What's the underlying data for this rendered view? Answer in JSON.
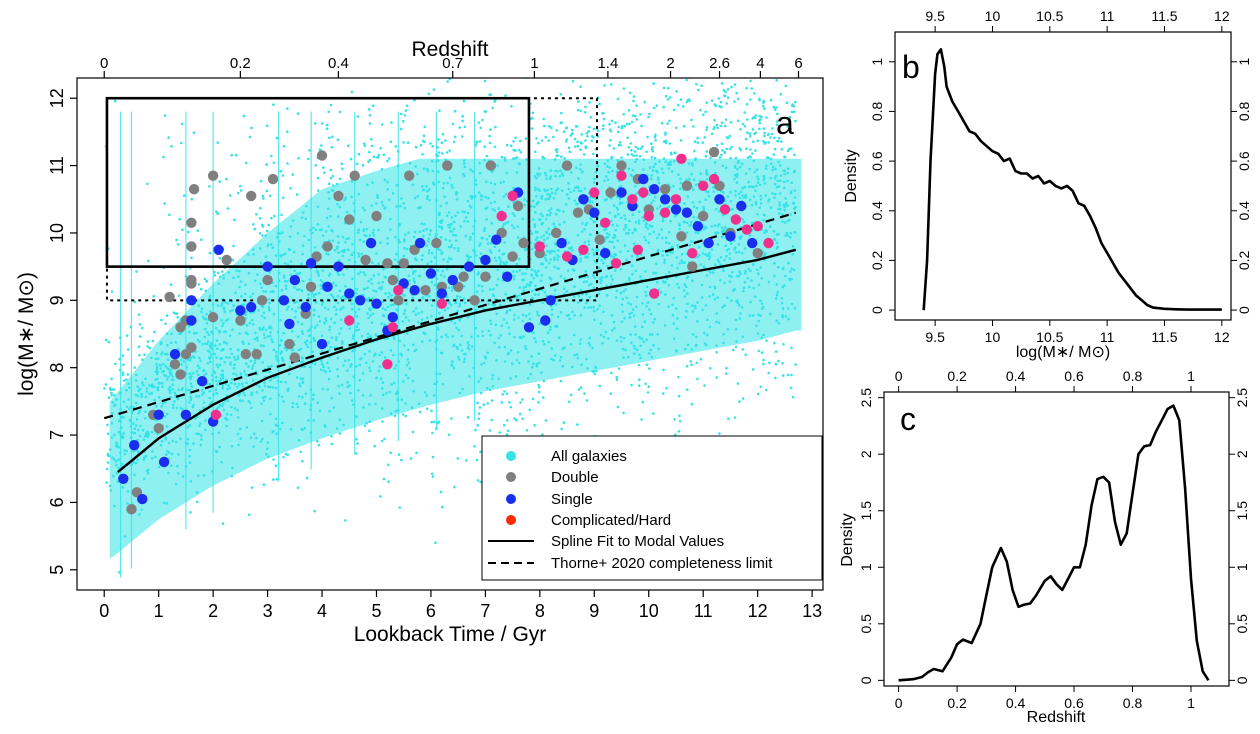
{
  "figure": "Galaxy stellar mass versus lookback time with density panels",
  "chart_data": [
    {
      "id": "a",
      "type": "scatter",
      "panel_label": "a",
      "xlabel": "Lookback Time / Gyr",
      "ylabel": "log(M∗/ M⊙)",
      "top_axis_label": "Redshift",
      "xlim": [
        -0.5,
        13.2
      ],
      "ylim": [
        4.7,
        12.3
      ],
      "xticks": [
        0,
        1,
        2,
        3,
        4,
        5,
        6,
        7,
        8,
        9,
        10,
        11,
        12,
        13
      ],
      "yticks": [
        5,
        6,
        7,
        8,
        9,
        10,
        11,
        12
      ],
      "top_ticks": [
        {
          "label": "0",
          "t": 0.0
        },
        {
          "label": "0.2",
          "t": 2.5
        },
        {
          "label": "0.4",
          "t": 4.3
        },
        {
          "label": "0.7",
          "t": 6.4
        },
        {
          "label": "1",
          "t": 7.9
        },
        {
          "label": "1.4",
          "t": 9.25
        },
        {
          "label": "2",
          "t": 10.4
        },
        {
          "label": "2.6",
          "t": 11.3
        },
        {
          "label": "4",
          "t": 12.05
        },
        {
          "label": "6",
          "t": 12.75
        }
      ],
      "colors": {
        "all": "#33e3e6",
        "double": "#808080",
        "single": "#1b2ef0",
        "complicated": "#f0308c",
        "legend_complicated": "#ff2a00"
      },
      "legend": [
        {
          "label": "All galaxies",
          "kind": "dot",
          "color": "#33e3e6"
        },
        {
          "label": "Double",
          "kind": "dot",
          "color": "#808080"
        },
        {
          "label": "Single",
          "kind": "dot",
          "color": "#1b2ef0"
        },
        {
          "label": "Complicated/Hard",
          "kind": "dot",
          "color": "#ff2a00"
        },
        {
          "label": "Spline Fit to Modal Values",
          "kind": "solid"
        },
        {
          "label": "Thorne+ 2020 completeness limit",
          "kind": "dashed"
        }
      ],
      "legend_position": "bottom-right",
      "boxes": [
        {
          "style": "solid",
          "x": [
            0.05,
            7.8
          ],
          "y": [
            9.5,
            12.0
          ]
        },
        {
          "style": "dotted",
          "x": [
            0.05,
            9.05
          ],
          "y": [
            9.0,
            12.0
          ]
        }
      ],
      "spline_fit": {
        "x": [
          0.25,
          1,
          2,
          3,
          4,
          5,
          6,
          7,
          8,
          9,
          10,
          11,
          12,
          12.7
        ],
        "y": [
          6.45,
          6.95,
          7.45,
          7.85,
          8.15,
          8.42,
          8.65,
          8.85,
          9.0,
          9.15,
          9.3,
          9.45,
          9.6,
          9.75
        ]
      },
      "completeness_limit": {
        "x": [
          0.0,
          12.7
        ],
        "y": [
          7.25,
          10.3
        ]
      },
      "double": [
        [
          0.5,
          5.9
        ],
        [
          0.6,
          6.15
        ],
        [
          1.0,
          7.1
        ],
        [
          0.9,
          7.3
        ],
        [
          1.3,
          8.05
        ],
        [
          1.4,
          7.9
        ],
        [
          1.5,
          8.2
        ],
        [
          1.6,
          8.3
        ],
        [
          1.4,
          8.6
        ],
        [
          1.5,
          8.7
        ],
        [
          1.2,
          9.05
        ],
        [
          1.6,
          9.25
        ],
        [
          1.6,
          9.3
        ],
        [
          1.6,
          9.8
        ],
        [
          1.6,
          10.15
        ],
        [
          1.65,
          10.65
        ],
        [
          2.0,
          10.85
        ],
        [
          2.25,
          9.6
        ],
        [
          2.0,
          8.75
        ],
        [
          2.5,
          8.7
        ],
        [
          2.6,
          8.2
        ],
        [
          2.8,
          8.2
        ],
        [
          2.9,
          9.0
        ],
        [
          3.0,
          9.3
        ],
        [
          3.1,
          10.8
        ],
        [
          2.7,
          10.55
        ],
        [
          3.4,
          8.35
        ],
        [
          3.5,
          8.15
        ],
        [
          3.7,
          8.8
        ],
        [
          3.8,
          9.2
        ],
        [
          3.9,
          9.65
        ],
        [
          4.0,
          11.15
        ],
        [
          4.1,
          9.8
        ],
        [
          4.3,
          10.55
        ],
        [
          4.5,
          10.2
        ],
        [
          4.6,
          10.85
        ],
        [
          4.8,
          9.6
        ],
        [
          5.0,
          10.25
        ],
        [
          5.2,
          9.55
        ],
        [
          5.3,
          9.3
        ],
        [
          5.4,
          9.0
        ],
        [
          5.5,
          9.55
        ],
        [
          5.6,
          10.85
        ],
        [
          5.7,
          9.75
        ],
        [
          5.9,
          9.15
        ],
        [
          6.1,
          9.85
        ],
        [
          6.2,
          9.2
        ],
        [
          6.3,
          11.0
        ],
        [
          6.5,
          9.2
        ],
        [
          6.6,
          9.35
        ],
        [
          6.8,
          9.0
        ],
        [
          7.0,
          9.35
        ],
        [
          7.1,
          11.0
        ],
        [
          7.3,
          10.0
        ],
        [
          7.5,
          9.65
        ],
        [
          7.6,
          10.4
        ],
        [
          7.7,
          9.85
        ],
        [
          8.0,
          9.7
        ],
        [
          8.3,
          10.0
        ],
        [
          8.5,
          11.0
        ],
        [
          8.7,
          10.3
        ],
        [
          8.9,
          10.35
        ],
        [
          9.1,
          9.9
        ],
        [
          9.3,
          10.6
        ],
        [
          9.5,
          11.0
        ],
        [
          9.8,
          10.8
        ],
        [
          10.0,
          10.35
        ],
        [
          10.3,
          10.65
        ],
        [
          10.6,
          9.95
        ],
        [
          10.7,
          10.7
        ],
        [
          10.8,
          9.5
        ],
        [
          11.0,
          10.25
        ],
        [
          11.2,
          11.2
        ],
        [
          11.3,
          10.7
        ],
        [
          11.5,
          10.0
        ],
        [
          12.0,
          9.7
        ]
      ],
      "single": [
        [
          0.35,
          6.35
        ],
        [
          0.55,
          6.85
        ],
        [
          0.7,
          6.05
        ],
        [
          1.0,
          7.3
        ],
        [
          1.1,
          6.6
        ],
        [
          1.3,
          8.2
        ],
        [
          1.5,
          7.3
        ],
        [
          1.6,
          8.7
        ],
        [
          1.6,
          9.0
        ],
        [
          1.8,
          7.8
        ],
        [
          2.0,
          7.2
        ],
        [
          2.1,
          9.75
        ],
        [
          2.5,
          8.85
        ],
        [
          2.7,
          8.9
        ],
        [
          3.0,
          9.5
        ],
        [
          3.3,
          9.0
        ],
        [
          3.4,
          8.65
        ],
        [
          3.5,
          9.3
        ],
        [
          3.7,
          8.9
        ],
        [
          3.8,
          9.55
        ],
        [
          4.0,
          8.35
        ],
        [
          4.1,
          9.2
        ],
        [
          4.3,
          9.5
        ],
        [
          4.5,
          9.1
        ],
        [
          4.7,
          9.0
        ],
        [
          4.9,
          9.85
        ],
        [
          5.0,
          8.95
        ],
        [
          5.2,
          8.55
        ],
        [
          5.3,
          8.75
        ],
        [
          5.5,
          9.25
        ],
        [
          5.7,
          9.15
        ],
        [
          5.8,
          9.85
        ],
        [
          6.0,
          9.4
        ],
        [
          6.2,
          9.1
        ],
        [
          6.4,
          9.3
        ],
        [
          6.7,
          9.5
        ],
        [
          7.0,
          9.6
        ],
        [
          7.2,
          9.9
        ],
        [
          7.4,
          9.35
        ],
        [
          7.6,
          10.6
        ],
        [
          7.8,
          8.6
        ],
        [
          8.1,
          8.7
        ],
        [
          8.2,
          9.0
        ],
        [
          8.4,
          9.85
        ],
        [
          8.6,
          9.6
        ],
        [
          8.8,
          10.5
        ],
        [
          9.0,
          10.3
        ],
        [
          9.2,
          9.7
        ],
        [
          9.5,
          10.6
        ],
        [
          9.7,
          10.4
        ],
        [
          9.9,
          10.8
        ],
        [
          10.1,
          10.65
        ],
        [
          10.3,
          10.5
        ],
        [
          10.5,
          10.35
        ],
        [
          10.7,
          10.3
        ],
        [
          10.9,
          10.1
        ],
        [
          11.1,
          9.85
        ],
        [
          11.3,
          10.5
        ],
        [
          11.5,
          9.95
        ],
        [
          11.7,
          10.4
        ],
        [
          11.9,
          9.85
        ]
      ],
      "complicated": [
        [
          2.05,
          7.3
        ],
        [
          4.5,
          8.7
        ],
        [
          5.2,
          8.05
        ],
        [
          5.3,
          8.6
        ],
        [
          5.4,
          9.15
        ],
        [
          6.2,
          8.95
        ],
        [
          7.3,
          10.25
        ],
        [
          7.5,
          10.55
        ],
        [
          8.0,
          9.8
        ],
        [
          8.5,
          9.65
        ],
        [
          8.8,
          9.75
        ],
        [
          9.0,
          10.6
        ],
        [
          9.2,
          10.15
        ],
        [
          9.4,
          9.55
        ],
        [
          9.5,
          10.85
        ],
        [
          9.7,
          10.5
        ],
        [
          9.8,
          9.75
        ],
        [
          9.9,
          10.6
        ],
        [
          10.0,
          10.25
        ],
        [
          10.1,
          9.1
        ],
        [
          10.3,
          10.3
        ],
        [
          10.5,
          10.5
        ],
        [
          10.6,
          11.1
        ],
        [
          10.8,
          9.7
        ],
        [
          11.0,
          10.7
        ],
        [
          11.2,
          10.8
        ],
        [
          11.4,
          10.35
        ],
        [
          11.6,
          10.2
        ],
        [
          11.8,
          10.05
        ],
        [
          12.0,
          10.1
        ],
        [
          12.2,
          9.85
        ]
      ]
    },
    {
      "id": "b",
      "type": "line",
      "panel_label": "b",
      "xlabel": "log(M∗/ M⊙)",
      "ylabel": "Density",
      "xlim": [
        9.15,
        12.08
      ],
      "ylim": [
        -0.04,
        1.12
      ],
      "xticks": [
        9.5,
        10,
        10.5,
        11,
        11.5,
        12
      ],
      "xtick_labels": [
        "9.5",
        "10",
        "10.5",
        "11",
        "11.5",
        "12"
      ],
      "yticks": [
        0,
        0.2,
        0.4,
        0.6,
        0.8,
        1
      ],
      "ytick_labels": [
        "0",
        "0.2",
        "0.4",
        "0.6",
        "0.8",
        "1"
      ],
      "x": [
        9.4,
        9.43,
        9.46,
        9.5,
        9.52,
        9.55,
        9.58,
        9.6,
        9.65,
        9.7,
        9.75,
        9.8,
        9.85,
        9.9,
        9.95,
        10.0,
        10.05,
        10.1,
        10.15,
        10.2,
        10.25,
        10.3,
        10.35,
        10.4,
        10.45,
        10.5,
        10.55,
        10.6,
        10.65,
        10.7,
        10.75,
        10.8,
        10.85,
        10.9,
        10.95,
        11.0,
        11.05,
        11.1,
        11.15,
        11.2,
        11.25,
        11.3,
        11.35,
        11.4,
        11.5,
        11.6,
        11.7,
        11.8,
        12.0
      ],
      "y": [
        0.0,
        0.2,
        0.6,
        0.95,
        1.03,
        1.05,
        0.98,
        0.9,
        0.84,
        0.8,
        0.76,
        0.72,
        0.71,
        0.68,
        0.66,
        0.64,
        0.63,
        0.6,
        0.61,
        0.56,
        0.55,
        0.55,
        0.53,
        0.54,
        0.51,
        0.52,
        0.5,
        0.49,
        0.5,
        0.48,
        0.43,
        0.42,
        0.38,
        0.33,
        0.27,
        0.23,
        0.19,
        0.15,
        0.12,
        0.09,
        0.06,
        0.04,
        0.02,
        0.01,
        0.005,
        0.003,
        0.002,
        0.002,
        0.002
      ]
    },
    {
      "id": "c",
      "type": "line",
      "panel_label": "c",
      "xlabel": "Redshift",
      "ylabel": "Density",
      "xlim": [
        -0.05,
        1.13
      ],
      "ylim": [
        -0.05,
        2.55
      ],
      "xticks": [
        0,
        0.2,
        0.4,
        0.6,
        0.8,
        1
      ],
      "xtick_labels": [
        "0",
        "0.2",
        "0.4",
        "0.6",
        "0.8",
        "1"
      ],
      "yticks": [
        0,
        0.5,
        1,
        1.5,
        2,
        2.5
      ],
      "ytick_labels": [
        "0",
        "0.5",
        "1",
        "1.5",
        "2",
        "2.5"
      ],
      "x": [
        0.0,
        0.05,
        0.08,
        0.1,
        0.12,
        0.15,
        0.18,
        0.2,
        0.22,
        0.25,
        0.28,
        0.3,
        0.32,
        0.35,
        0.37,
        0.39,
        0.41,
        0.43,
        0.45,
        0.47,
        0.5,
        0.52,
        0.54,
        0.56,
        0.58,
        0.6,
        0.62,
        0.64,
        0.66,
        0.68,
        0.7,
        0.72,
        0.74,
        0.76,
        0.78,
        0.8,
        0.82,
        0.84,
        0.86,
        0.88,
        0.9,
        0.92,
        0.94,
        0.96,
        0.98,
        1.0,
        1.02,
        1.04,
        1.06
      ],
      "y": [
        0.0,
        0.01,
        0.03,
        0.07,
        0.1,
        0.08,
        0.2,
        0.32,
        0.36,
        0.33,
        0.5,
        0.75,
        1.0,
        1.17,
        1.05,
        0.8,
        0.65,
        0.67,
        0.68,
        0.75,
        0.88,
        0.92,
        0.85,
        0.8,
        0.9,
        1.0,
        1.0,
        1.2,
        1.55,
        1.78,
        1.8,
        1.75,
        1.4,
        1.2,
        1.3,
        1.65,
        2.0,
        2.07,
        2.08,
        2.2,
        2.3,
        2.4,
        2.43,
        2.3,
        1.7,
        0.9,
        0.35,
        0.08,
        0.0
      ]
    }
  ]
}
